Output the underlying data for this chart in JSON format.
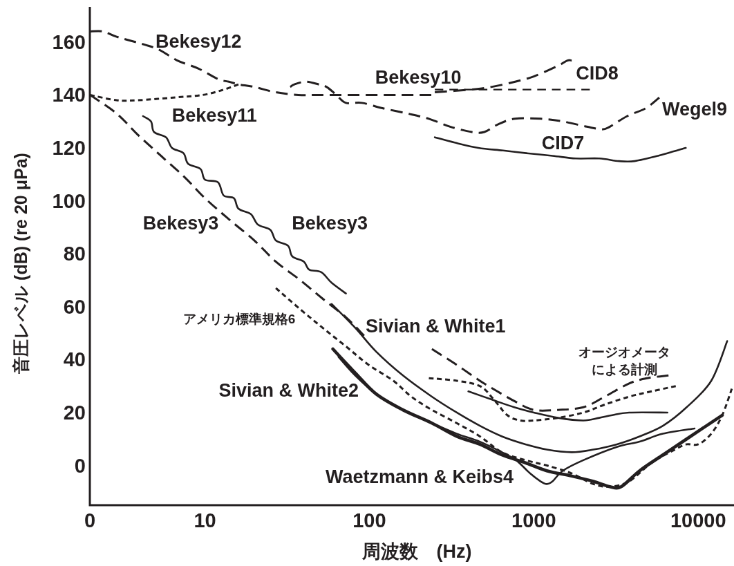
{
  "chart_data": {
    "type": "line",
    "xlabel": "周波数　(Hz)",
    "ylabel": "音圧レベル (dB) (re 20 μPa)",
    "log": "x",
    "xlim": [
      0,
      16500
    ],
    "ylim": [
      -15,
      173
    ],
    "xticks": [
      0,
      10,
      100,
      1000,
      10000
    ],
    "yticks": [
      0,
      20,
      40,
      60,
      80,
      100,
      120,
      140,
      160
    ],
    "series": [
      {
        "name": "Bekesy12",
        "color": "#231f20",
        "line_style": "dashed",
        "x": [
          2,
          2.4,
          2.9,
          4.3,
          5.3,
          6.8,
          9.1,
          12,
          14,
          16,
          20,
          27,
          37,
          49,
          72,
          128,
          170,
          238
        ],
        "values": [
          164,
          164,
          162,
          159,
          157,
          153,
          150,
          146,
          145,
          144,
          143,
          141,
          140,
          140,
          140,
          140,
          140,
          140
        ]
      },
      {
        "name": "Bekesy11",
        "color": "#231f20",
        "line_style": "dashed",
        "x": [
          2,
          2.9,
          3.9,
          6.4,
          9.7,
          13,
          16
        ],
        "values": [
          140,
          138,
          138,
          139,
          140,
          142,
          144
        ]
      },
      {
        "name": "Bekesy10",
        "color": "#231f20",
        "line_style": "dashed",
        "x": [
          250,
          730,
          2200
        ],
        "values": [
          142,
          142,
          142
        ]
      },
      {
        "name": "CID8",
        "color": "#231f20",
        "line_style": "dashed",
        "x": [
          250,
          410,
          550,
          770,
          1000,
          1400,
          1600,
          1700
        ],
        "values": [
          141,
          142,
          143,
          145,
          147,
          151,
          153,
          153
        ]
      },
      {
        "name": "Wegel9",
        "color": "#231f20",
        "line_style": "dashed",
        "x": [
          33,
          35,
          41,
          49,
          55,
          63,
          72,
          90,
          120,
          170,
          230,
          310,
          420,
          500,
          610,
          770,
          1100,
          1500,
          2100,
          2600,
          2900,
          3700,
          4800,
          5800
        ],
        "values": [
          143,
          144,
          145,
          144,
          143,
          140,
          137,
          137,
          135,
          133,
          131,
          128,
          126,
          126,
          129,
          131,
          131,
          130,
          128,
          127,
          128,
          132,
          135,
          139
        ]
      },
      {
        "name": "CID7",
        "color": "#231f20",
        "line_style": "solid",
        "x": [
          250,
          330,
          460,
          650,
          900,
          1300,
          1800,
          2500,
          3300,
          4100,
          5700,
          8400
        ],
        "values": [
          124,
          122,
          120,
          119,
          118,
          117,
          116,
          116,
          115,
          115,
          117,
          120
        ]
      },
      {
        "name": "Bekesy3",
        "color": "#231f20",
        "line_style": "dashed",
        "x": [
          2,
          2.9,
          3.9,
          5.4,
          7.5,
          10,
          14,
          20,
          27,
          38,
          52,
          72,
          93
        ],
        "values": [
          140,
          133,
          125,
          117,
          109,
          101,
          93,
          85,
          77,
          70,
          63,
          56,
          49
        ]
      },
      {
        "name": "Bekesy3",
        "color": "#231f20",
        "line_style": "solid",
        "x": [
          4.2,
          4.7,
          4.9,
          5.8,
          6.3,
          7.4,
          7.9,
          9.4,
          10,
          12,
          13,
          15,
          16,
          19,
          21,
          25,
          27,
          32,
          34,
          40,
          43,
          51,
          59,
          72
        ],
        "values": [
          132,
          130,
          126,
          124,
          120,
          118,
          114,
          112,
          108,
          107,
          102,
          101,
          97,
          95,
          91,
          89,
          85,
          83,
          79,
          77,
          74,
          73,
          69,
          65
        ]
      },
      {
        "name": "アメリカ標準規格6",
        "color": "#231f20",
        "line_style": "dashed",
        "x": [
          27,
          38,
          52,
          72,
          99,
          140,
          180,
          240,
          340,
          470,
          640,
          890,
          1200,
          1700,
          2300,
          2900,
          3800,
          5200,
          7200,
          8500,
          10000,
          12000,
          14000,
          16000
        ],
        "values": [
          67,
          59,
          52,
          45,
          38,
          32,
          26,
          21,
          16,
          11,
          5,
          2,
          0,
          -3,
          -7,
          -8,
          -6,
          1,
          6,
          8,
          8,
          12,
          19,
          29
        ]
      },
      {
        "name": "Sivian & White1",
        "color": "#231f20",
        "line_style": "solid",
        "x": [
          59,
          82,
          110,
          160,
          240,
          340,
          470,
          640,
          890,
          1200,
          1700,
          2300,
          3200,
          4400,
          6100,
          8500,
          12000,
          15000
        ],
        "values": [
          61,
          52,
          43,
          34,
          26,
          20,
          15,
          11,
          8,
          6,
          5,
          6,
          8,
          11,
          15,
          22,
          32,
          47
        ]
      },
      {
        "name": "Sivian & White2",
        "color": "#231f20",
        "line_style": "solid",
        "x": [
          60,
          82,
          110,
          160,
          240,
          340,
          470,
          640,
          890,
          1200,
          1700,
          2300,
          2900,
          3400,
          4400,
          6100,
          8500,
          14000
        ],
        "values": [
          44,
          35,
          27,
          21,
          16,
          11,
          8,
          4,
          1,
          -2,
          -4,
          -6,
          -8,
          -8,
          -2,
          4,
          10,
          19
        ]
      },
      {
        "name": "Waetzmann & Keibs4",
        "color": "#231f20",
        "line_style": "solid",
        "x": [
          65,
          82,
          110,
          160,
          240,
          340,
          470,
          640,
          780,
          950,
          1100,
          1200,
          1300,
          1500,
          2000,
          3200,
          4400,
          6100,
          9500
        ],
        "values": [
          41,
          34,
          27,
          21,
          16,
          12,
          9,
          5,
          2,
          -3,
          -6,
          -7,
          -6,
          -2,
          2,
          7,
          9,
          12,
          14
        ]
      },
      {
        "name": "オージオメータによる計測",
        "color": "#231f20",
        "line_style": "dashed",
        "x": [
          240,
          340,
          470,
          600,
          780,
          1000,
          1400,
          2000,
          2700,
          3800,
          4900,
          6600
        ],
        "values": [
          44,
          38,
          32,
          28,
          24,
          21,
          21,
          22,
          26,
          31,
          33,
          34
        ]
      },
      {
        "color": "#231f20",
        "line_style": "dashed",
        "x": [
          230,
          340,
          470,
          570,
          690,
          830,
          1000,
          1400,
          2000,
          2700,
          3800,
          5200,
          7300
        ],
        "values": [
          33,
          32,
          30,
          25,
          19,
          17,
          17,
          18,
          20,
          23,
          26,
          28,
          30
        ]
      },
      {
        "color": "#231f20",
        "line_style": "solid",
        "x": [
          400,
          550,
          760,
          1000,
          1400,
          2000,
          2500,
          3000,
          3800,
          6500
        ],
        "values": [
          28,
          25,
          22,
          20,
          18,
          17,
          18,
          19,
          20,
          20
        ]
      }
    ]
  }
}
